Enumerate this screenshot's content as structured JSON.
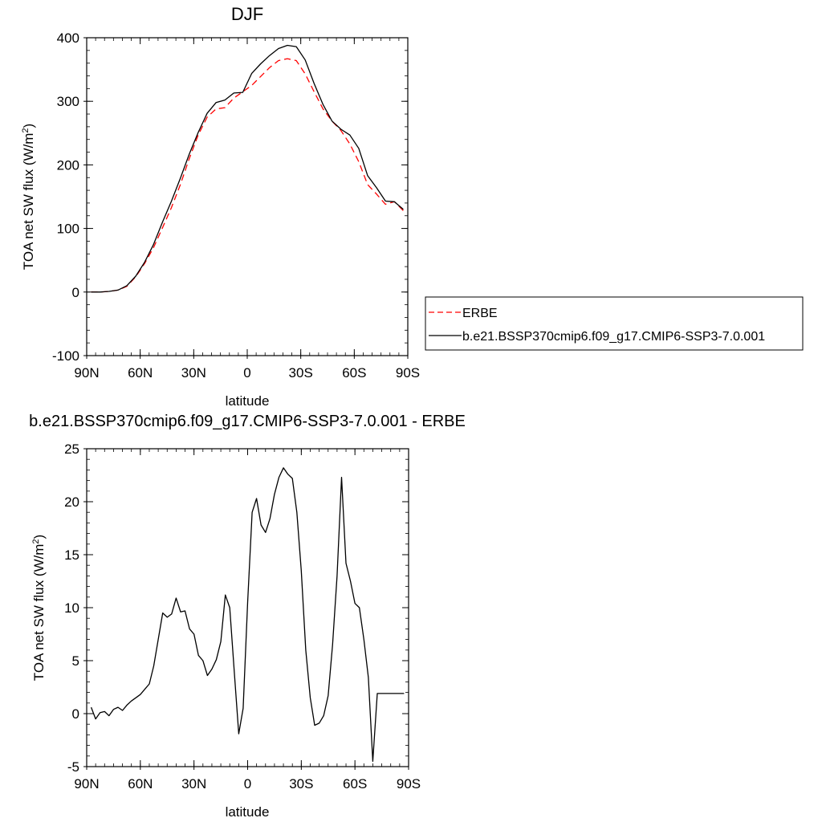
{
  "chart_data": [
    {
      "type": "line",
      "title": "DJF",
      "xlabel": "latitude",
      "ylabel": "TOA net SW flux (W/m",
      "ylabel_sup": "2",
      "ylabel_close": ")",
      "xlim": [
        -90,
        90
      ],
      "ylim": [
        -100,
        400
      ],
      "xticks": [
        -90,
        -60,
        -30,
        0,
        30,
        60,
        90
      ],
      "xtick_labels": [
        "90N",
        "60N",
        "30N",
        "0",
        "30S",
        "60S",
        "90S"
      ],
      "yticks": [
        -100,
        0,
        100,
        200,
        300,
        400
      ],
      "ytick_labels": [
        "-100",
        "0",
        "100",
        "200",
        "300",
        "400"
      ],
      "grid": false,
      "legend_position": "right-outside",
      "series": [
        {
          "name": "ERBE",
          "color": "#ff0000",
          "style": "dashed",
          "x": [
            -87.5,
            -82.5,
            -77.5,
            -72.5,
            -67.5,
            -62.5,
            -57.5,
            -52.5,
            -47.5,
            -42.5,
            -37.5,
            -32.5,
            -27.5,
            -22.5,
            -17.5,
            -12.5,
            -7.5,
            -2.5,
            2.5,
            7.5,
            12.5,
            17.5,
            22.5,
            27.5,
            32.5,
            37.5,
            42.5,
            47.5,
            52.5,
            57.5,
            62.5,
            67.5,
            72.5,
            77.5,
            82.5,
            87.5
          ],
          "y": [
            0,
            0,
            1,
            3,
            9,
            24,
            45,
            70,
            101,
            133,
            169,
            210,
            247,
            275,
            288,
            290,
            305,
            315,
            325,
            339,
            353,
            364,
            367,
            364,
            343,
            315,
            288,
            269,
            254,
            233,
            205,
            169,
            154,
            138,
            142,
            128
          ]
        },
        {
          "name": "b.e21.BSSP370cmip6.f09_g17.CMIP6-SSP3-7.0.001",
          "color": "#000000",
          "style": "solid",
          "x": [
            -87.5,
            -82.5,
            -77.5,
            -72.5,
            -67.5,
            -62.5,
            -57.5,
            -52.5,
            -47.5,
            -42.5,
            -37.5,
            -32.5,
            -27.5,
            -22.5,
            -17.5,
            -12.5,
            -7.5,
            -2.5,
            2.5,
            7.5,
            12.5,
            17.5,
            22.5,
            27.5,
            32.5,
            37.5,
            42.5,
            47.5,
            52.5,
            57.5,
            62.5,
            67.5,
            72.5,
            77.5,
            82.5,
            87.5
          ],
          "y": [
            0,
            0,
            1,
            3,
            10,
            25,
            47,
            75,
            110,
            143,
            179,
            217,
            251,
            281,
            298,
            302,
            313,
            314,
            344,
            359,
            372,
            383,
            388,
            386,
            365,
            328,
            295,
            269,
            256,
            247,
            226,
            183,
            164,
            143,
            142,
            130
          ]
        }
      ]
    },
    {
      "type": "line",
      "title": "b.e21.BSSP370cmip6.f09_g17.CMIP6-SSP3-7.0.001 - ERBE",
      "xlabel": "latitude",
      "ylabel": "TOA net SW flux (W/m",
      "ylabel_sup": "2",
      "ylabel_close": ")",
      "xlim": [
        -90,
        90
      ],
      "ylim": [
        -5,
        25
      ],
      "xticks": [
        -90,
        -60,
        -30,
        0,
        30,
        60,
        90
      ],
      "xtick_labels": [
        "90N",
        "60N",
        "30N",
        "0",
        "30S",
        "60S",
        "90S"
      ],
      "yticks": [
        -5,
        0,
        5,
        10,
        15,
        20,
        25
      ],
      "ytick_labels": [
        "-5",
        "0",
        "5",
        "10",
        "15",
        "20",
        "25"
      ],
      "grid": false,
      "series": [
        {
          "color": "#000000",
          "style": "solid",
          "x": [
            -87.5,
            -85,
            -82.5,
            -80,
            -77.5,
            -75,
            -72.5,
            -70,
            -67.5,
            -65,
            -62.5,
            -60,
            -57.5,
            -55,
            -52.5,
            -50,
            -47.5,
            -45,
            -42.5,
            -40,
            -37.5,
            -35,
            -32.5,
            -30,
            -27.5,
            -25,
            -22.5,
            -20,
            -17.5,
            -15,
            -12.5,
            -10,
            -7.5,
            -5,
            -2.5,
            0,
            2.5,
            5,
            7.5,
            10,
            12.5,
            15,
            17.5,
            20,
            22.5,
            25,
            27.5,
            30,
            32.5,
            35,
            37.5,
            40,
            42.5,
            45,
            47.5,
            50,
            52.5,
            55,
            57.5,
            60,
            62.5,
            65,
            67.5,
            70,
            72.5,
            75,
            77.5,
            80,
            82.5,
            85,
            87.5
          ],
          "y": [
            0.6,
            -0.5,
            0.1,
            0.2,
            -0.2,
            0.4,
            0.6,
            0.3,
            0.8,
            1.2,
            1.5,
            1.8,
            2.3,
            2.8,
            4.5,
            7.0,
            9.5,
            9.1,
            9.4,
            10.9,
            9.6,
            9.7,
            8.0,
            7.5,
            5.5,
            5.0,
            3.6,
            4.2,
            5.1,
            6.8,
            11.2,
            10.0,
            4.0,
            -1.9,
            0.5,
            10.5,
            19.0,
            20.3,
            17.8,
            17.1,
            18.4,
            20.7,
            22.3,
            23.2,
            22.6,
            22.2,
            19.0,
            13.5,
            6.0,
            1.5,
            -1.1,
            -0.9,
            -0.2,
            1.7,
            6.5,
            13.0,
            22.3,
            14.2,
            12.5,
            10.4,
            10.0,
            7.0,
            3.4,
            -4.5,
            1.9,
            1.9,
            1.9,
            1.9,
            1.9,
            1.9,
            1.9
          ]
        }
      ]
    }
  ]
}
